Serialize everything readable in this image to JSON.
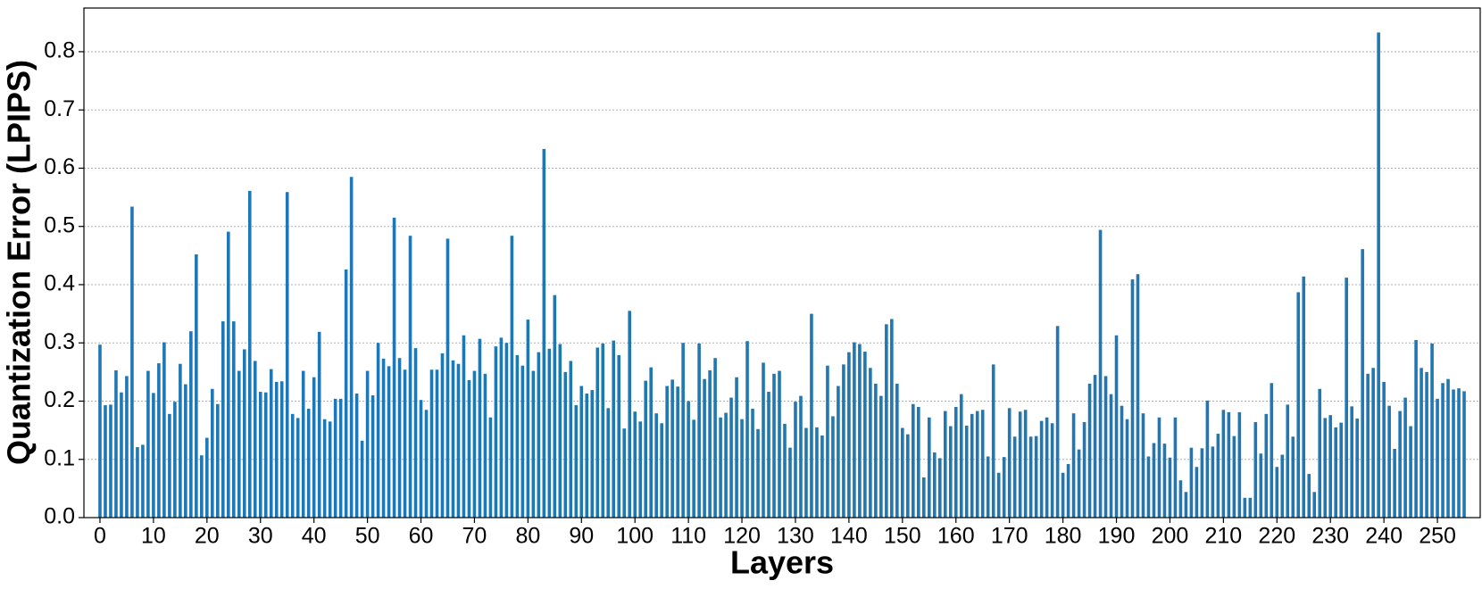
{
  "chart_data": {
    "type": "bar",
    "xlabel": "Layers",
    "ylabel": "Quantization Error (LPIPS)",
    "color": "#1f77b4",
    "grid": true,
    "x": [
      0,
      1,
      2,
      3,
      4,
      5,
      6,
      7,
      8,
      9,
      10,
      11,
      12,
      13,
      14,
      15,
      16,
      17,
      18,
      19,
      20,
      21,
      22,
      23,
      24,
      25,
      26,
      27,
      28,
      29,
      30,
      31,
      32,
      33,
      34,
      35,
      36,
      37,
      38,
      39,
      40,
      41,
      42,
      43,
      44,
      45,
      46,
      47,
      48,
      49,
      50,
      51,
      52,
      53,
      54,
      55,
      56,
      57,
      58,
      59,
      60,
      61,
      62,
      63,
      64,
      65,
      66,
      67,
      68,
      69,
      70,
      71,
      72,
      73,
      74,
      75,
      76,
      77,
      78,
      79,
      80,
      81,
      82,
      83,
      84,
      85,
      86,
      87,
      88,
      89,
      90,
      91,
      92,
      93,
      94,
      95,
      96,
      97,
      98,
      99,
      100,
      101,
      102,
      103,
      104,
      105,
      106,
      107,
      108,
      109,
      110,
      111,
      112,
      113,
      114,
      115,
      116,
      117,
      118,
      119,
      120,
      121,
      122,
      123,
      124,
      125,
      126,
      127,
      128,
      129,
      130,
      131,
      132,
      133,
      134,
      135,
      136,
      137,
      138,
      139,
      140,
      141,
      142,
      143,
      144,
      145,
      146,
      147,
      148,
      149,
      150,
      151,
      152,
      153,
      154,
      155,
      156,
      157,
      158,
      159,
      160,
      161,
      162,
      163,
      164,
      165,
      166,
      167,
      168,
      169,
      170,
      171,
      172,
      173,
      174,
      175,
      176,
      177,
      178,
      179,
      180,
      181,
      182,
      183,
      184,
      185,
      186,
      187,
      188,
      189,
      190,
      191,
      192,
      193,
      194,
      195,
      196,
      197,
      198,
      199,
      200,
      201,
      202,
      203,
      204,
      205,
      206,
      207,
      208,
      209,
      210,
      211,
      212,
      213,
      214,
      215,
      216,
      217,
      218,
      219,
      220,
      221,
      222,
      223,
      224,
      225,
      226,
      227,
      228,
      229,
      230,
      231,
      232,
      233,
      234,
      235,
      236,
      237,
      238,
      239,
      240,
      241,
      242,
      243,
      244,
      245,
      246,
      247,
      248,
      249,
      250,
      251,
      252,
      253,
      254,
      255
    ],
    "values": [
      0.297,
      0.193,
      0.194,
      0.253,
      0.215,
      0.243,
      0.534,
      0.121,
      0.125,
      0.252,
      0.214,
      0.265,
      0.301,
      0.178,
      0.199,
      0.264,
      0.229,
      0.32,
      0.452,
      0.107,
      0.137,
      0.221,
      0.195,
      0.337,
      0.491,
      0.337,
      0.252,
      0.289,
      0.561,
      0.269,
      0.216,
      0.215,
      0.255,
      0.233,
      0.234,
      0.559,
      0.178,
      0.171,
      0.252,
      0.187,
      0.241,
      0.319,
      0.169,
      0.165,
      0.204,
      0.204,
      0.426,
      0.585,
      0.213,
      0.132,
      0.252,
      0.21,
      0.3,
      0.273,
      0.26,
      0.515,
      0.274,
      0.254,
      0.484,
      0.291,
      0.202,
      0.185,
      0.254,
      0.254,
      0.282,
      0.479,
      0.27,
      0.264,
      0.313,
      0.236,
      0.252,
      0.307,
      0.247,
      0.172,
      0.294,
      0.309,
      0.3,
      0.484,
      0.279,
      0.261,
      0.34,
      0.252,
      0.284,
      0.633,
      0.29,
      0.382,
      0.298,
      0.25,
      0.269,
      0.193,
      0.226,
      0.213,
      0.219,
      0.292,
      0.299,
      0.188,
      0.304,
      0.279,
      0.153,
      0.355,
      0.182,
      0.165,
      0.235,
      0.258,
      0.179,
      0.162,
      0.226,
      0.237,
      0.225,
      0.3,
      0.2,
      0.168,
      0.299,
      0.238,
      0.253,
      0.274,
      0.172,
      0.18,
      0.206,
      0.241,
      0.169,
      0.303,
      0.187,
      0.152,
      0.266,
      0.216,
      0.247,
      0.252,
      0.161,
      0.12,
      0.199,
      0.209,
      0.154,
      0.35,
      0.155,
      0.141,
      0.261,
      0.174,
      0.226,
      0.263,
      0.284,
      0.301,
      0.298,
      0.285,
      0.257,
      0.23,
      0.209,
      0.332,
      0.341,
      0.23,
      0.154,
      0.143,
      0.195,
      0.19,
      0.069,
      0.172,
      0.112,
      0.102,
      0.183,
      0.157,
      0.19,
      0.212,
      0.158,
      0.178,
      0.183,
      0.185,
      0.105,
      0.263,
      0.077,
      0.104,
      0.188,
      0.139,
      0.182,
      0.185,
      0.139,
      0.14,
      0.166,
      0.172,
      0.162,
      0.329,
      0.077,
      0.092,
      0.179,
      0.117,
      0.164,
      0.23,
      0.245,
      0.494,
      0.243,
      0.212,
      0.313,
      0.192,
      0.169,
      0.409,
      0.418,
      0.179,
      0.105,
      0.128,
      0.172,
      0.127,
      0.103,
      0.172,
      0.064,
      0.044,
      0.12,
      0.087,
      0.119,
      0.201,
      0.122,
      0.144,
      0.185,
      0.181,
      0.14,
      0.181,
      0.034,
      0.034,
      0.164,
      0.11,
      0.178,
      0.231,
      0.087,
      0.108,
      0.194,
      0.139,
      0.387,
      0.414,
      0.075,
      0.044,
      0.221,
      0.171,
      0.176,
      0.155,
      0.163,
      0.412,
      0.191,
      0.17,
      0.461,
      0.247,
      0.257,
      0.833,
      0.233,
      0.192,
      0.118,
      0.183,
      0.206,
      0.157,
      0.305,
      0.257,
      0.25,
      0.299,
      0.204,
      0.231,
      0.238,
      0.22,
      0.222,
      0.217
    ],
    "xlim": [
      -3,
      258
    ],
    "xticks": [
      0,
      10,
      20,
      30,
      40,
      50,
      60,
      70,
      80,
      90,
      100,
      110,
      120,
      130,
      140,
      150,
      160,
      170,
      180,
      190,
      200,
      210,
      220,
      230,
      240,
      250
    ],
    "ylim": [
      0,
      0.875
    ],
    "yticks": [
      0.0,
      0.1,
      0.2,
      0.3,
      0.4,
      0.5,
      0.6,
      0.7,
      0.8
    ]
  }
}
